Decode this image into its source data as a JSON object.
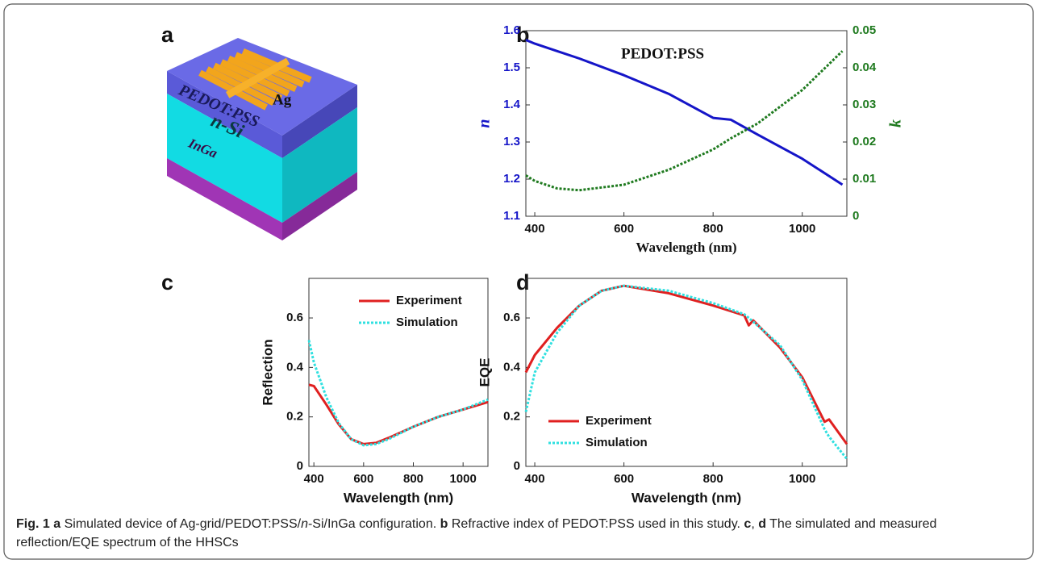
{
  "figure": {
    "panel_label": "a",
    "diagram_labels": {
      "grid": "Ag",
      "top_layer": "PEDOT:PSS",
      "middle_layer": "n-Si",
      "bottom_layer": "InGa"
    }
  },
  "chart_data": [
    {
      "type": "line",
      "panel_label": "b",
      "annotation": "PEDOT:PSS",
      "xlabel": "Wavelength (nm)",
      "ylabel": "n",
      "y2label": "k",
      "x": [
        380,
        400,
        450,
        500,
        600,
        700,
        800,
        840,
        900,
        1000,
        1090
      ],
      "series": [
        {
          "color": "#1515c8",
          "dashed": false,
          "values": [
            1.575,
            1.565,
            1.545,
            1.525,
            1.48,
            1.43,
            1.365,
            1.36,
            1.32,
            1.255,
            1.185
          ]
        },
        {
          "color": "#1f7a1f",
          "dashed": true,
          "axis": "y2",
          "values": [
            0.011,
            0.0095,
            0.0075,
            0.007,
            0.0085,
            0.0125,
            0.018,
            0.021,
            0.025,
            0.034,
            0.0445
          ]
        }
      ],
      "xlim": [
        380,
        1100
      ],
      "xticks": [
        400,
        600,
        800,
        1000
      ],
      "ylim": [
        1.1,
        1.6
      ],
      "yticks": [
        1.1,
        1.2,
        1.3,
        1.4,
        1.5,
        1.6
      ],
      "y2lim": [
        0,
        0.05
      ],
      "y2ticks": [
        0,
        0.01,
        0.02,
        0.03,
        0.04,
        0.05
      ]
    },
    {
      "type": "line",
      "panel_label": "c",
      "xlabel": "Wavelength (nm)",
      "ylabel": "Reflection",
      "legend": "upper right",
      "x": [
        380,
        400,
        450,
        500,
        550,
        600,
        650,
        700,
        800,
        900,
        1000,
        1100
      ],
      "series": [
        {
          "name": "Experiment",
          "color": "#e02020",
          "dashed": false,
          "values": [
            0.33,
            0.325,
            0.25,
            0.17,
            0.11,
            0.09,
            0.095,
            0.115,
            0.16,
            0.2,
            0.23,
            0.26
          ]
        },
        {
          "name": "Simulation",
          "color": "#30e0e0",
          "dashed": true,
          "values": [
            0.51,
            0.42,
            0.28,
            0.175,
            0.11,
            0.085,
            0.09,
            0.11,
            0.16,
            0.2,
            0.23,
            0.27
          ]
        }
      ],
      "xlim": [
        380,
        1100
      ],
      "xticks": [
        400,
        600,
        800,
        1000
      ],
      "ylim": [
        0,
        0.76
      ],
      "yticks": [
        0,
        0.2,
        0.4,
        0.6
      ]
    },
    {
      "type": "line",
      "panel_label": "d",
      "xlabel": "Wavelength (nm)",
      "ylabel": "EQE",
      "legend": "lower left",
      "x": [
        380,
        400,
        450,
        500,
        550,
        600,
        700,
        800,
        870,
        880,
        890,
        950,
        1000,
        1050,
        1060,
        1100
      ],
      "series": [
        {
          "name": "Experiment",
          "color": "#e02020",
          "dashed": false,
          "values": [
            0.38,
            0.45,
            0.56,
            0.65,
            0.71,
            0.73,
            0.7,
            0.65,
            0.61,
            0.57,
            0.59,
            0.48,
            0.36,
            0.18,
            0.19,
            0.09
          ]
        },
        {
          "name": "Simulation",
          "color": "#30e0e0",
          "dashed": true,
          "values": [
            0.22,
            0.38,
            0.54,
            0.65,
            0.71,
            0.73,
            0.71,
            0.66,
            0.615,
            0.6,
            0.585,
            0.49,
            0.35,
            0.15,
            0.12,
            0.03
          ]
        }
      ],
      "xlim": [
        380,
        1100
      ],
      "xticks": [
        400,
        600,
        800,
        1000
      ],
      "ylim": [
        0,
        0.76
      ],
      "yticks": [
        0,
        0.2,
        0.4,
        0.6
      ]
    }
  ],
  "caption": [
    "Fig. 1",
    "a",
    "Simulated device of Ag-grid/PEDOT:PSS/",
    "n",
    "-Si/InGa configuration.",
    "b",
    "Refractive index of PEDOT:PSS used in this study.",
    "c",
    ",",
    "d",
    "The simulated and measured reflection/EQE spectrum of the HHSCs"
  ]
}
